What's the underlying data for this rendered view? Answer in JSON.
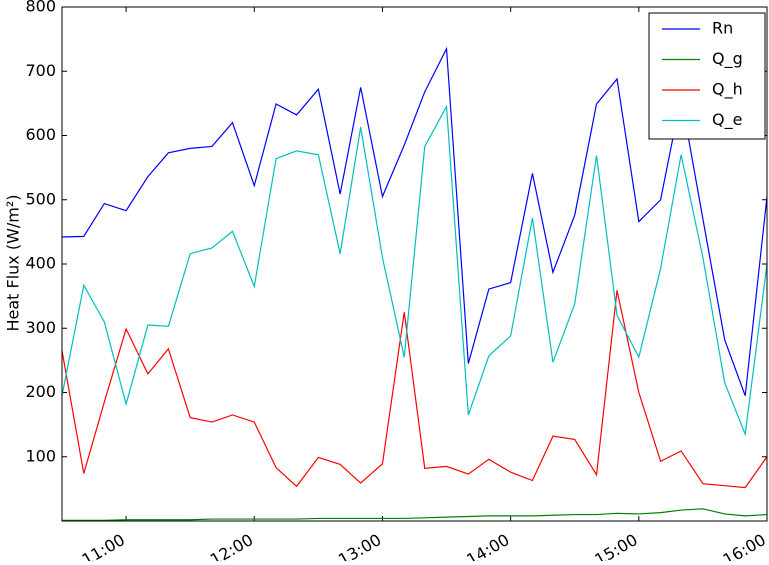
{
  "chart_data": {
    "type": "line",
    "y_label": "Heat Flux (W/m²)",
    "x": [
      10.5,
      10.67,
      10.83,
      11,
      11.17,
      11.33,
      11.5,
      11.67,
      11.83,
      12,
      12.17,
      12.33,
      12.5,
      12.67,
      12.83,
      13,
      13.17,
      13.33,
      13.5,
      13.67,
      13.83,
      14,
      14.17,
      14.33,
      14.5,
      14.67,
      14.83,
      15,
      15.17,
      15.33,
      15.5,
      15.67,
      15.83,
      16
    ],
    "xlim": [
      10.5,
      16.0
    ],
    "xticks": [
      {
        "value": 11,
        "label": "11:00"
      },
      {
        "value": 12,
        "label": "12:00"
      },
      {
        "value": 13,
        "label": "13:00"
      },
      {
        "value": 14,
        "label": "14:00"
      },
      {
        "value": 15,
        "label": "15:00"
      },
      {
        "value": 16,
        "label": "16:00"
      }
    ],
    "ylim": [
      0,
      800
    ],
    "yticks": [
      100,
      200,
      300,
      400,
      500,
      600,
      700,
      800
    ],
    "legend": "upper right",
    "series": [
      {
        "name": "Rn",
        "color": "#0000ff",
        "values": [
          442,
          443,
          494,
          483,
          536,
          573,
          580,
          583,
          620,
          522,
          649,
          632,
          672,
          509,
          675,
          505,
          585,
          668,
          735,
          245,
          361,
          371,
          541,
          387,
          476,
          649,
          688,
          466,
          500,
          660,
          470,
          282,
          195,
          505
        ]
      },
      {
        "name": "Q_g",
        "color": "#008000",
        "values": [
          1,
          1,
          1,
          2,
          2,
          2,
          2,
          3,
          3,
          3,
          3,
          3,
          4,
          4,
          4,
          4,
          4,
          5,
          6,
          7,
          8,
          8,
          8,
          9,
          10,
          10,
          12,
          11,
          13,
          17,
          19,
          11,
          8,
          10
        ]
      },
      {
        "name": "Q_h",
        "color": "#ff0000",
        "values": [
          265,
          74,
          185,
          299,
          229,
          268,
          161,
          154,
          165,
          154,
          83,
          54,
          99,
          88,
          59,
          89,
          325,
          82,
          85,
          73,
          96,
          76,
          63,
          132,
          127,
          72,
          359,
          200,
          93,
          109,
          58,
          55,
          52,
          100
        ]
      },
      {
        "name": "Q_e",
        "color": "#00bfbf",
        "values": [
          195,
          367,
          310,
          182,
          305,
          303,
          416,
          425,
          451,
          365,
          564,
          576,
          570,
          416,
          613,
          410,
          255,
          583,
          645,
          165,
          257,
          288,
          472,
          247,
          338,
          569,
          320,
          255,
          393,
          570,
          410,
          215,
          135,
          400
        ]
      }
    ]
  }
}
